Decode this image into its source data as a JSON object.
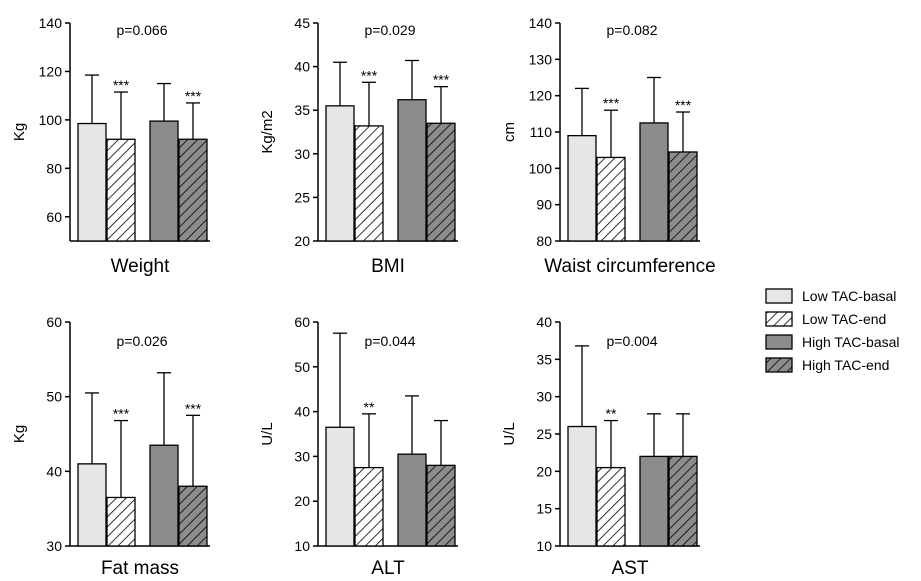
{
  "chart_data": [
    {
      "type": "bar",
      "title": "Weight",
      "ylabel": "Kg",
      "ylim": [
        50,
        140
      ],
      "yticks": [
        60,
        80,
        100,
        120,
        140
      ],
      "p_value_label": "p=0.066",
      "categories": [
        "Low TAC-basal",
        "Low TAC-end",
        "High TAC-basal",
        "High TAC-end"
      ],
      "values": [
        98.5,
        92,
        99.5,
        92
      ],
      "error_upper": [
        118.5,
        111.5,
        115,
        107
      ],
      "significance": [
        "",
        "***",
        "",
        "***"
      ]
    },
    {
      "type": "bar",
      "title": "BMI",
      "ylabel": "Kg/m2",
      "ylim": [
        20,
        45
      ],
      "yticks": [
        20,
        25,
        30,
        35,
        40,
        45
      ],
      "p_value_label": "p=0.029",
      "categories": [
        "Low TAC-basal",
        "Low TAC-end",
        "High TAC-basal",
        "High TAC-end"
      ],
      "values": [
        35.5,
        33.2,
        36.2,
        33.5
      ],
      "error_upper": [
        40.5,
        38.2,
        40.7,
        37.7
      ],
      "significance": [
        "",
        "***",
        "",
        "***"
      ]
    },
    {
      "type": "bar",
      "title": "Waist circumference",
      "ylabel": "cm",
      "ylim": [
        80,
        140
      ],
      "yticks": [
        80,
        90,
        100,
        110,
        120,
        130,
        140
      ],
      "p_value_label": "p=0.082",
      "categories": [
        "Low TAC-basal",
        "Low TAC-end",
        "High TAC-basal",
        "High TAC-end"
      ],
      "values": [
        109,
        103,
        112.5,
        104.5
      ],
      "error_upper": [
        122,
        116,
        125,
        115.5
      ],
      "significance": [
        "",
        "***",
        "",
        "***"
      ]
    },
    {
      "type": "bar",
      "title": "Fat mass",
      "ylabel": "Kg",
      "ylim": [
        30,
        60
      ],
      "yticks": [
        30,
        40,
        50,
        60
      ],
      "p_value_label": "p=0.026",
      "categories": [
        "Low TAC-basal",
        "Low TAC-end",
        "High TAC-basal",
        "High TAC-end"
      ],
      "values": [
        41,
        36.5,
        43.5,
        38
      ],
      "error_upper": [
        50.5,
        46.8,
        53.2,
        47.5
      ],
      "significance": [
        "",
        "***",
        "",
        "***"
      ]
    },
    {
      "type": "bar",
      "title": "ALT",
      "ylabel": "U/L",
      "ylim": [
        10,
        60
      ],
      "yticks": [
        10,
        20,
        30,
        40,
        50,
        60
      ],
      "p_value_label": "p=0.044",
      "categories": [
        "Low TAC-basal",
        "Low TAC-end",
        "High TAC-basal",
        "High TAC-end"
      ],
      "values": [
        36.5,
        27.5,
        30.5,
        28
      ],
      "error_upper": [
        57.5,
        39.5,
        43.5,
        38
      ],
      "significance": [
        "",
        "**",
        "",
        ""
      ]
    },
    {
      "type": "bar",
      "title": "AST",
      "ylabel": "U/L",
      "ylim": [
        10,
        40
      ],
      "yticks": [
        10,
        15,
        20,
        25,
        30,
        35,
        40
      ],
      "p_value_label": "p=0.004",
      "categories": [
        "Low TAC-basal",
        "Low TAC-end",
        "High TAC-basal",
        "High TAC-end"
      ],
      "values": [
        26,
        20.5,
        22,
        22
      ],
      "error_upper": [
        36.8,
        26.8,
        27.7,
        27.7
      ],
      "significance": [
        "",
        "**",
        "",
        ""
      ]
    }
  ],
  "legend": {
    "position": "right",
    "items": [
      {
        "label": "Low TAC-basal",
        "fill": "#e6e6e6",
        "hatch": false
      },
      {
        "label": "Low TAC-end",
        "fill": "#ffffff",
        "hatch": true
      },
      {
        "label": "High TAC-basal",
        "fill": "#8c8c8c",
        "hatch": false
      },
      {
        "label": "High TAC-end",
        "fill": "#8c8c8c",
        "hatch": true
      }
    ]
  }
}
